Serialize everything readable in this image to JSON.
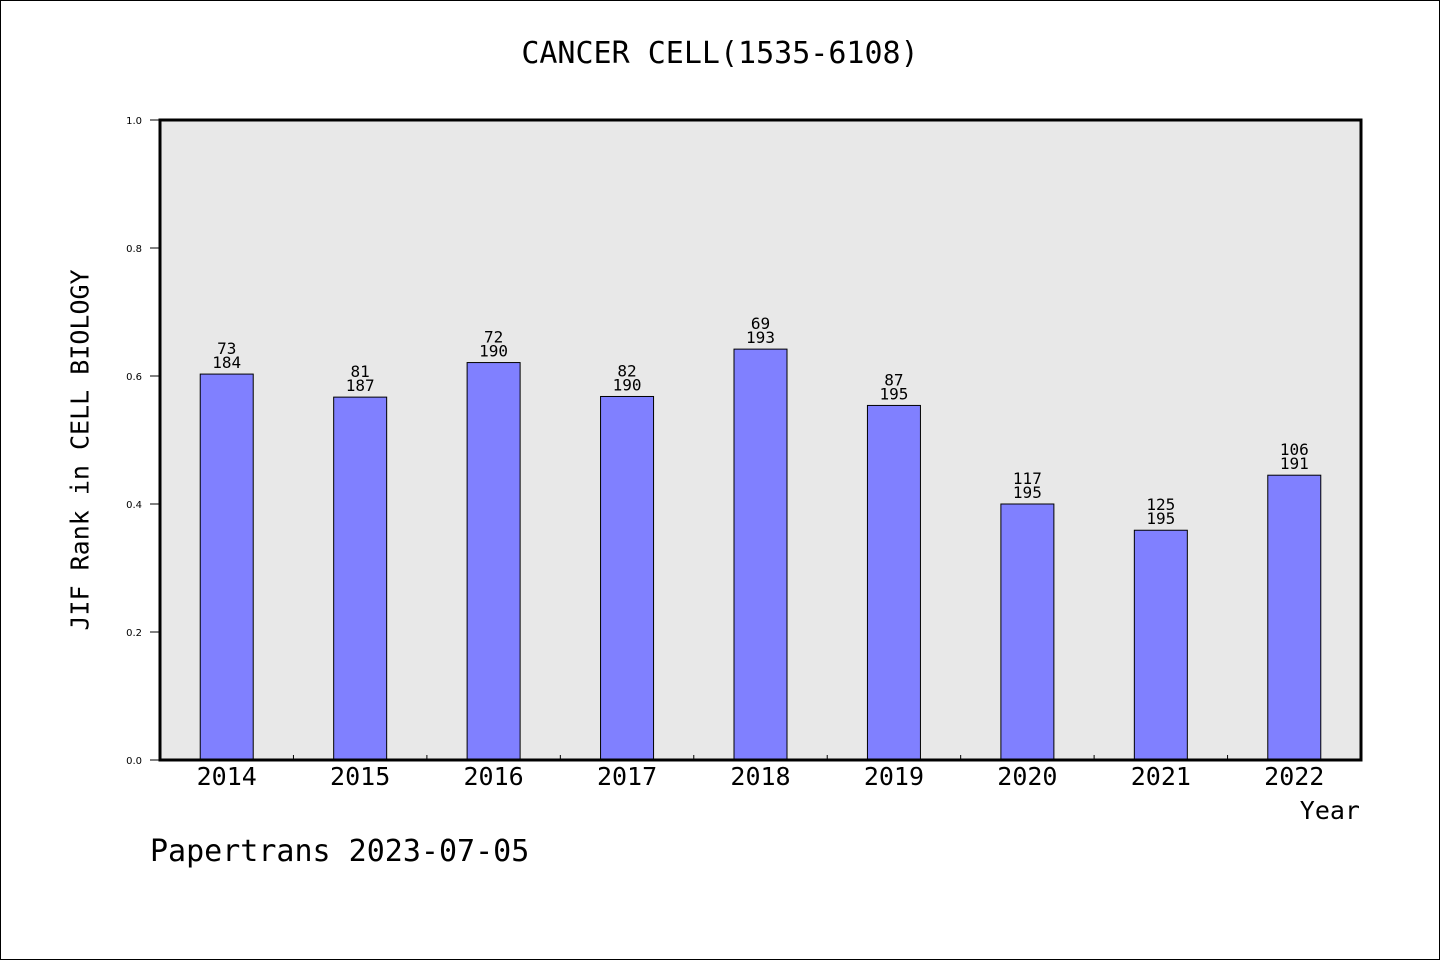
{
  "chart_data": {
    "type": "bar",
    "title": "CANCER CELL(1535-6108)",
    "ylabel": "JIF Rank in CELL BIOLOGY",
    "xlabel": "Year",
    "ylim": [
      0,
      1.0
    ],
    "yticks": [
      "0.0",
      "0.2",
      "0.4",
      "0.6",
      "0.8",
      "1.0"
    ],
    "categories": [
      "2014",
      "2015",
      "2016",
      "2017",
      "2018",
      "2019",
      "2020",
      "2021",
      "2022"
    ],
    "values": [
      0.603,
      0.567,
      0.621,
      0.568,
      0.642,
      0.554,
      0.4,
      0.359,
      0.445
    ],
    "rank_labels": [
      "73",
      "81",
      "72",
      "82",
      "69",
      "87",
      "117",
      "125",
      "106"
    ],
    "total_labels": [
      "184",
      "187",
      "190",
      "190",
      "193",
      "195",
      "195",
      "195",
      "191"
    ],
    "bar_color": "#8080ff",
    "plot_background": "#e8e8e8",
    "grid": false,
    "legend": "none"
  },
  "footer": "Papertrans 2023-07-05"
}
